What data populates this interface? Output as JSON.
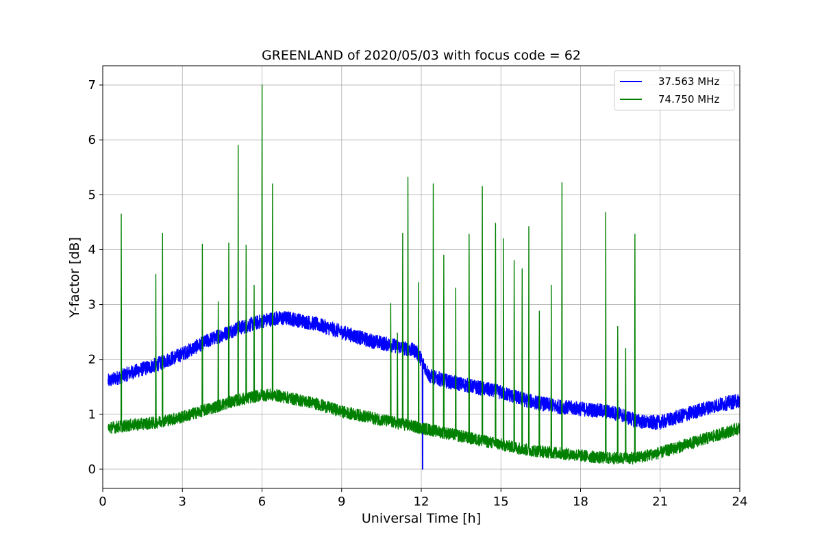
{
  "chart_data": {
    "type": "line",
    "title": "GREENLAND of 2020/05/03 with focus code = 62",
    "xlabel": "Universal Time [h]",
    "ylabel": "Y-factor [dB]",
    "xlim": [
      0,
      24
    ],
    "ylim": [
      -0.35,
      7.35
    ],
    "xticks": [
      0,
      3,
      6,
      9,
      12,
      15,
      18,
      21,
      24
    ],
    "yticks": [
      0,
      1,
      2,
      3,
      4,
      5,
      6,
      7
    ],
    "grid": true,
    "legend_position": "top-right",
    "series": [
      {
        "name": "37.563 MHz",
        "color": "#0000ff",
        "noise_band": 0.13,
        "x": [
          0.2,
          1,
          2,
          3,
          4,
          5,
          6,
          6.5,
          7,
          8,
          9,
          10,
          11,
          11.8,
          12.0,
          12.3,
          13,
          14,
          15,
          16,
          17,
          18,
          19,
          19.5,
          20,
          20.5,
          21,
          22,
          23,
          24
        ],
        "y": [
          1.6,
          1.75,
          1.9,
          2.1,
          2.35,
          2.55,
          2.7,
          2.75,
          2.75,
          2.65,
          2.5,
          2.35,
          2.25,
          2.15,
          2.0,
          1.7,
          1.6,
          1.5,
          1.4,
          1.25,
          1.15,
          1.1,
          1.05,
          1.0,
          0.9,
          0.85,
          0.85,
          1.0,
          1.15,
          1.25
        ],
        "dip": {
          "x": 12.05,
          "y": 0.0
        }
      },
      {
        "name": "74.750 MHz",
        "color": "#008000",
        "noise_band": 0.11,
        "x": [
          0.2,
          1,
          2,
          3,
          4,
          5,
          6,
          6.5,
          7,
          8,
          9,
          10,
          11,
          12,
          13,
          14,
          15,
          16,
          17,
          18,
          19,
          19.5,
          20,
          20.5,
          21,
          22,
          23,
          24
        ],
        "y": [
          0.75,
          0.8,
          0.85,
          0.95,
          1.1,
          1.25,
          1.35,
          1.35,
          1.3,
          1.2,
          1.05,
          0.95,
          0.85,
          0.75,
          0.65,
          0.55,
          0.45,
          0.35,
          0.3,
          0.25,
          0.2,
          0.2,
          0.2,
          0.25,
          0.3,
          0.45,
          0.6,
          0.75
        ],
        "spikes": [
          [
            0.7,
            4.65
          ],
          [
            2.0,
            3.55
          ],
          [
            2.25,
            4.3
          ],
          [
            3.75,
            4.1
          ],
          [
            4.35,
            3.05
          ],
          [
            4.75,
            4.12
          ],
          [
            5.1,
            5.9
          ],
          [
            5.4,
            4.08
          ],
          [
            5.7,
            3.35
          ],
          [
            6.0,
            7.0
          ],
          [
            6.4,
            5.2
          ],
          [
            10.85,
            3.02
          ],
          [
            11.1,
            2.48
          ],
          [
            11.3,
            4.3
          ],
          [
            11.5,
            5.32
          ],
          [
            11.9,
            3.4
          ],
          [
            12.45,
            5.2
          ],
          [
            12.85,
            3.9
          ],
          [
            13.3,
            3.3
          ],
          [
            13.8,
            4.28
          ],
          [
            14.3,
            5.15
          ],
          [
            14.8,
            4.48
          ],
          [
            15.1,
            4.2
          ],
          [
            15.5,
            3.8
          ],
          [
            15.8,
            3.65
          ],
          [
            16.05,
            4.42
          ],
          [
            16.45,
            2.88
          ],
          [
            16.9,
            3.35
          ],
          [
            17.3,
            5.22
          ],
          [
            18.95,
            4.68
          ],
          [
            19.4,
            2.6
          ],
          [
            19.7,
            2.2
          ],
          [
            20.05,
            4.28
          ]
        ]
      }
    ]
  }
}
